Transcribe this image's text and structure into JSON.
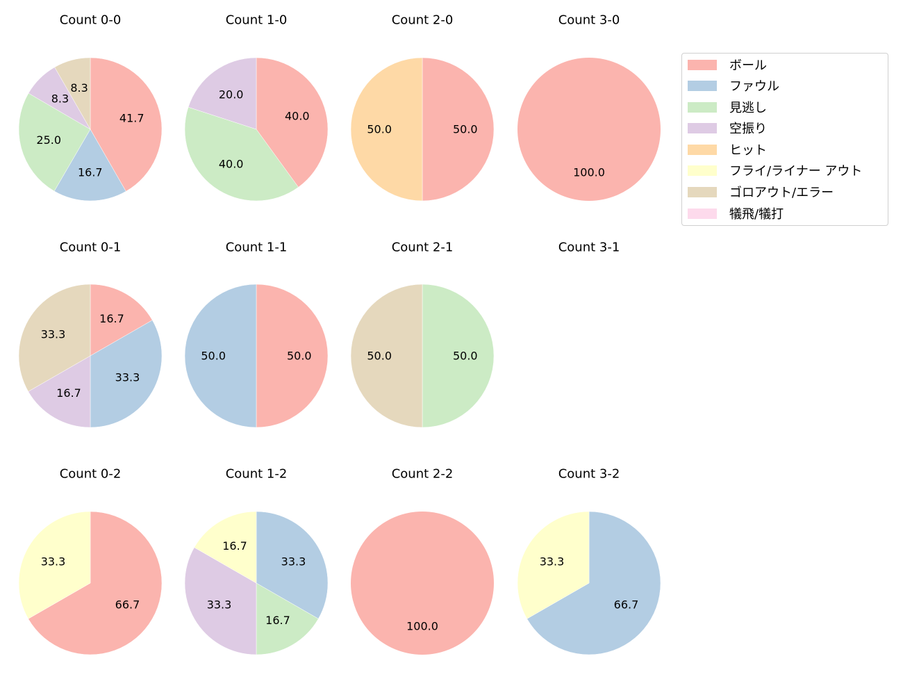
{
  "chart_data": {
    "type": "pie",
    "categories": [
      "ボール",
      "ファウル",
      "見逃し",
      "空振り",
      "ヒット",
      "フライ/ライナー アウト",
      "ゴロアウト/エラー",
      "犠飛/犠打"
    ],
    "colors": [
      "#fbb4ae",
      "#b3cde3",
      "#ccebc5",
      "#decbe4",
      "#fed9a6",
      "#ffffcc",
      "#e5d8bd",
      "#fddaec"
    ],
    "start_angle": 90,
    "direction": "clockwise",
    "legend_position": "upper right",
    "charts": [
      {
        "title": "Count 0-0",
        "row": 0,
        "col": 0,
        "values": [
          41.7,
          16.7,
          25.0,
          8.3,
          0,
          0,
          8.3,
          0
        ]
      },
      {
        "title": "Count 1-0",
        "row": 0,
        "col": 1,
        "values": [
          40.0,
          0,
          40.0,
          20.0,
          0,
          0,
          0,
          0
        ]
      },
      {
        "title": "Count 2-0",
        "row": 0,
        "col": 2,
        "values": [
          50.0,
          0,
          0,
          0,
          50.0,
          0,
          0,
          0
        ]
      },
      {
        "title": "Count 3-0",
        "row": 0,
        "col": 3,
        "values": [
          100.0,
          0,
          0,
          0,
          0,
          0,
          0,
          0
        ]
      },
      {
        "title": "Count 0-1",
        "row": 1,
        "col": 0,
        "values": [
          16.7,
          33.3,
          0,
          16.7,
          0,
          0,
          33.3,
          0
        ]
      },
      {
        "title": "Count 1-1",
        "row": 1,
        "col": 1,
        "values": [
          50.0,
          50.0,
          0,
          0,
          0,
          0,
          0,
          0
        ]
      },
      {
        "title": "Count 2-1",
        "row": 1,
        "col": 2,
        "values": [
          0,
          0,
          50.0,
          0,
          0,
          0,
          50.0,
          0
        ]
      },
      {
        "title": "Count 3-1",
        "row": 1,
        "col": 3,
        "values": []
      },
      {
        "title": "Count 0-2",
        "row": 2,
        "col": 0,
        "values": [
          66.7,
          0,
          0,
          0,
          0,
          33.3,
          0,
          0
        ]
      },
      {
        "title": "Count 1-2",
        "row": 2,
        "col": 1,
        "values": [
          0,
          33.3,
          16.7,
          33.3,
          0,
          16.7,
          0,
          0
        ]
      },
      {
        "title": "Count 2-2",
        "row": 2,
        "col": 2,
        "values": [
          100.0,
          0,
          0,
          0,
          0,
          0,
          0,
          0
        ]
      },
      {
        "title": "Count 3-2",
        "row": 2,
        "col": 3,
        "values": [
          0,
          66.7,
          0,
          0,
          0,
          33.3,
          0,
          0
        ]
      }
    ]
  },
  "legend": {
    "items": [
      {
        "label": "ボール",
        "color": "#fbb4ae"
      },
      {
        "label": "ファウル",
        "color": "#b3cde3"
      },
      {
        "label": "見逃し",
        "color": "#ccebc5"
      },
      {
        "label": "空振り",
        "color": "#decbe4"
      },
      {
        "label": "ヒット",
        "color": "#fed9a6"
      },
      {
        "label": "フライ/ライナー アウト",
        "color": "#ffffcc"
      },
      {
        "label": "ゴロアウト/エラー",
        "color": "#e5d8bd"
      },
      {
        "label": "犠飛/犠打",
        "color": "#fddaec"
      }
    ]
  }
}
